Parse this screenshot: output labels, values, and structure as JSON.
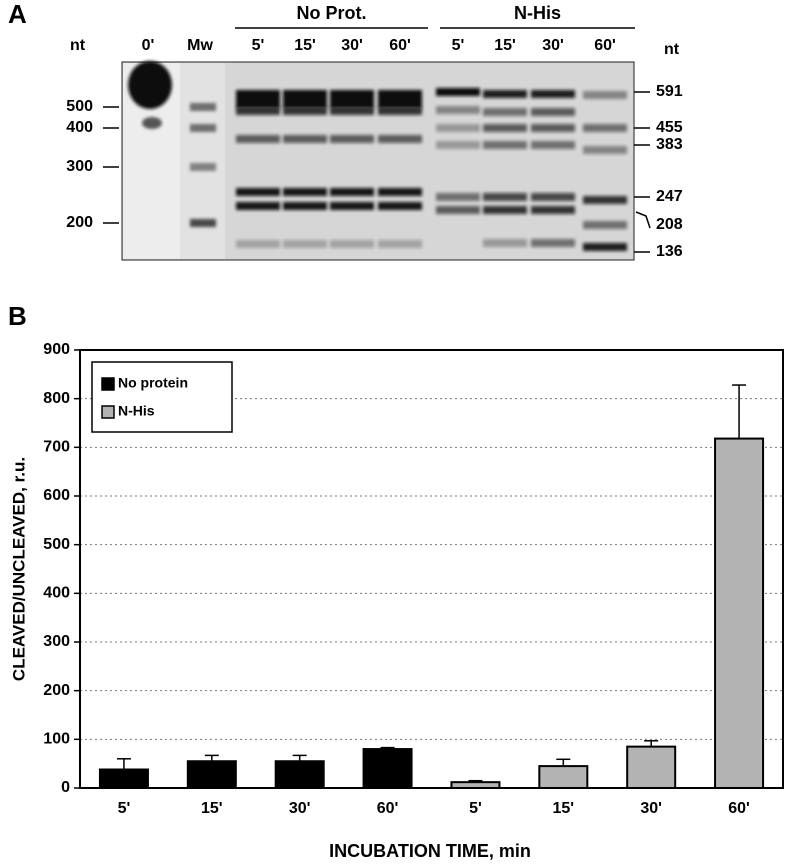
{
  "panel_a": {
    "label": "A",
    "left_unit": "nt",
    "right_unit": "nt",
    "groups": [
      "No Prot.",
      "N-His"
    ],
    "lanes": [
      "0'",
      "Mw",
      "5'",
      "15'",
      "30'",
      "60'",
      "5'",
      "15'",
      "30'",
      "60'"
    ],
    "left_markers": [
      500,
      400,
      300,
      200
    ],
    "right_markers": [
      591,
      455,
      383,
      247,
      208,
      136
    ]
  },
  "chart_data": {
    "type": "bar",
    "panel_label": "B",
    "x_label": "INCUBATION TIME, min",
    "y_label": "CLEAVED/UNCLEAVED, r.u.",
    "categories": [
      "5'",
      "15'",
      "30'",
      "60'",
      "5'",
      "15'",
      "30'",
      "60'"
    ],
    "series": [
      {
        "name": "No protein",
        "color": "#000000",
        "values": [
          38,
          55,
          55,
          80,
          null,
          null,
          null,
          null
        ],
        "errors": [
          22,
          12,
          12,
          3,
          null,
          null,
          null,
          null
        ]
      },
      {
        "name": "N-His",
        "color": "#b3b3b3",
        "values": [
          null,
          null,
          null,
          null,
          12,
          45,
          85,
          718
        ],
        "errors": [
          null,
          null,
          null,
          null,
          3,
          14,
          12,
          110
        ]
      }
    ],
    "ylim": [
      0,
      900
    ],
    "yticks": [
      0,
      100,
      200,
      300,
      400,
      500,
      600,
      700,
      800,
      900
    ],
    "grid": true,
    "legend": "upper left"
  }
}
